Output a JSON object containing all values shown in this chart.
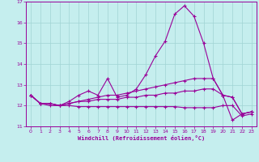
{
  "xlabel": "Windchill (Refroidissement éolien,°C)",
  "xlim": [
    -0.5,
    23.5
  ],
  "ylim": [
    11,
    17
  ],
  "yticks": [
    11,
    12,
    13,
    14,
    15,
    16,
    17
  ],
  "xticks": [
    0,
    1,
    2,
    3,
    4,
    5,
    6,
    7,
    8,
    9,
    10,
    11,
    12,
    13,
    14,
    15,
    16,
    17,
    18,
    19,
    20,
    21,
    22,
    23
  ],
  "background_color": "#c5eeee",
  "grid_color": "#a0d4d4",
  "line_color": "#990099",
  "lines": [
    {
      "x": [
        0,
        1,
        2,
        3,
        4,
        5,
        6,
        7,
        8,
        9,
        10,
        11,
        12,
        13,
        14,
        15,
        16,
        17,
        18,
        19,
        20,
        21,
        22,
        23
      ],
      "y": [
        12.5,
        12.1,
        12.1,
        12.0,
        12.2,
        12.5,
        12.7,
        12.5,
        13.3,
        12.4,
        12.5,
        12.8,
        13.5,
        14.4,
        15.1,
        16.4,
        16.8,
        16.3,
        15.0,
        13.3,
        12.5,
        11.3,
        11.6,
        11.7
      ]
    },
    {
      "x": [
        0,
        1,
        2,
        3,
        4,
        5,
        6,
        7,
        8,
        9,
        10,
        11,
        12,
        13,
        14,
        15,
        16,
        17,
        18,
        19,
        20,
        21,
        22,
        23
      ],
      "y": [
        12.5,
        12.1,
        12.1,
        12.0,
        12.1,
        12.2,
        12.3,
        12.4,
        12.5,
        12.5,
        12.6,
        12.7,
        12.8,
        12.9,
        13.0,
        13.1,
        13.2,
        13.3,
        13.3,
        13.3,
        12.5,
        12.4,
        11.6,
        11.7
      ]
    },
    {
      "x": [
        0,
        1,
        2,
        3,
        4,
        5,
        6,
        7,
        8,
        9,
        10,
        11,
        12,
        13,
        14,
        15,
        16,
        17,
        18,
        19,
        20,
        21,
        22,
        23
      ],
      "y": [
        12.5,
        12.1,
        12.1,
        12.0,
        12.1,
        12.2,
        12.2,
        12.3,
        12.3,
        12.3,
        12.4,
        12.4,
        12.5,
        12.5,
        12.6,
        12.6,
        12.7,
        12.7,
        12.8,
        12.8,
        12.5,
        12.4,
        11.6,
        11.7
      ]
    },
    {
      "x": [
        0,
        1,
        2,
        3,
        4,
        5,
        6,
        7,
        8,
        9,
        10,
        11,
        12,
        13,
        14,
        15,
        16,
        17,
        18,
        19,
        20,
        21,
        22,
        23
      ],
      "y": [
        12.5,
        12.1,
        12.0,
        12.0,
        12.0,
        11.95,
        11.95,
        11.95,
        11.95,
        11.95,
        11.95,
        11.95,
        11.95,
        11.95,
        11.95,
        11.95,
        11.9,
        11.9,
        11.9,
        11.9,
        12.0,
        12.0,
        11.5,
        11.6
      ]
    }
  ]
}
